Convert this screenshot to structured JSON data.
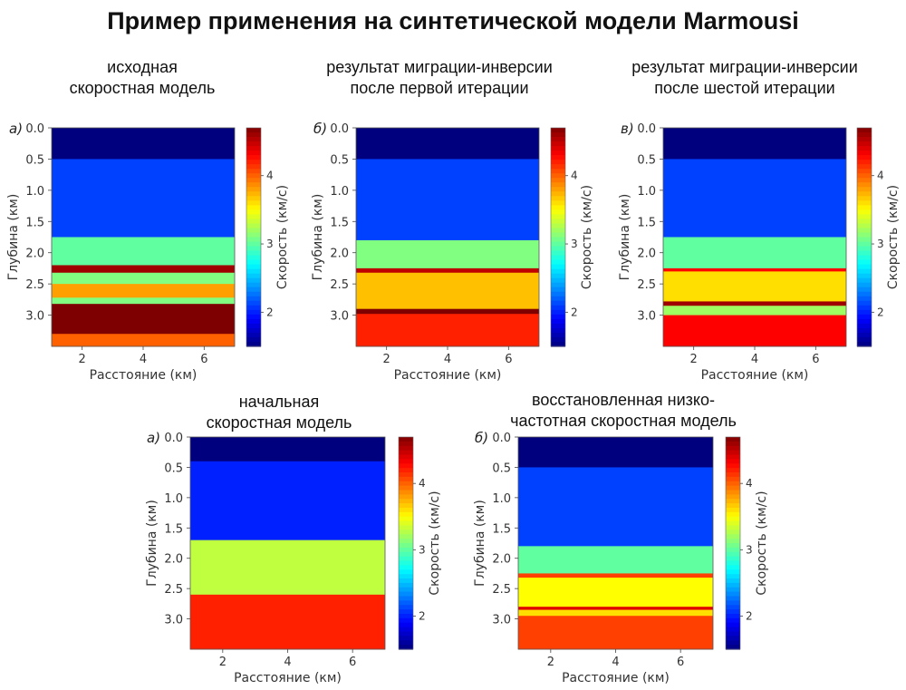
{
  "title": "Пример применения на синтетической модели Marmousi",
  "captions": [
    "исходная\nскоростная модель",
    "результат миграции-инверсии\nпосле первой итерации",
    "результат миграции-инверсии\nпосле шестой итерации",
    "начальная\nскоростная модель",
    "восстановленная низко-\nчастотная скоростная модель"
  ],
  "colormap": [
    "#00007f",
    "#0000ff",
    "#0080ff",
    "#00ffff",
    "#80ff80",
    "#ffff00",
    "#ff8000",
    "#ff0000",
    "#7f0000"
  ],
  "chart_data": [
    {
      "type": "heatmap",
      "panel_label": "а)",
      "xlabel": "Расстояние (км)",
      "ylabel": "Глубина (км)",
      "x_ticks": [
        2,
        4,
        6
      ],
      "y_ticks": [
        0.0,
        0.5,
        1.0,
        1.5,
        2.0,
        2.5,
        3.0
      ],
      "xlim": [
        1.0,
        7.0
      ],
      "ylim": [
        3.5,
        0.0
      ],
      "colorbar_label": "Скорость (км/с)",
      "colorbar_ticks": [
        2,
        3,
        4
      ],
      "colorbar_range": [
        1.5,
        4.7
      ],
      "layers": [
        {
          "top": 0.0,
          "bottom": 0.5,
          "v": 1.5
        },
        {
          "top": 0.5,
          "bottom": 1.75,
          "v": 2.1
        },
        {
          "top": 1.75,
          "bottom": 2.2,
          "v": 3.0
        },
        {
          "top": 2.2,
          "bottom": 2.32,
          "v": 4.6
        },
        {
          "top": 2.32,
          "bottom": 2.5,
          "v": 3.1
        },
        {
          "top": 2.5,
          "bottom": 2.72,
          "v": 3.8
        },
        {
          "top": 2.72,
          "bottom": 2.82,
          "v": 3.1
        },
        {
          "top": 2.82,
          "bottom": 3.3,
          "v": 4.8
        },
        {
          "top": 3.3,
          "bottom": 3.5,
          "v": 4.0
        }
      ]
    },
    {
      "type": "heatmap",
      "panel_label": "б)",
      "xlabel": "Расстояние (км)",
      "ylabel": "Глубина (км)",
      "x_ticks": [
        2,
        4,
        6
      ],
      "y_ticks": [
        0.0,
        0.5,
        1.0,
        1.5,
        2.0,
        2.5,
        3.0
      ],
      "xlim": [
        1.0,
        7.0
      ],
      "ylim": [
        3.5,
        0.0
      ],
      "colorbar_label": "Скорость (км/с)",
      "colorbar_ticks": [
        2,
        3,
        4
      ],
      "colorbar_range": [
        1.5,
        4.7
      ],
      "layers": [
        {
          "top": 0.0,
          "bottom": 0.5,
          "v": 1.5
        },
        {
          "top": 0.5,
          "bottom": 1.8,
          "v": 2.1
        },
        {
          "top": 1.8,
          "bottom": 2.25,
          "v": 3.1
        },
        {
          "top": 2.25,
          "bottom": 2.32,
          "v": 4.5
        },
        {
          "top": 2.32,
          "bottom": 2.9,
          "v": 3.7
        },
        {
          "top": 2.9,
          "bottom": 2.98,
          "v": 4.8
        },
        {
          "top": 2.98,
          "bottom": 3.5,
          "v": 4.2
        }
      ]
    },
    {
      "type": "heatmap",
      "panel_label": "в)",
      "xlabel": "Расстояние (км)",
      "ylabel": "Глубина (км)",
      "x_ticks": [
        2,
        4,
        6
      ],
      "y_ticks": [
        0.0,
        0.5,
        1.0,
        1.5,
        2.0,
        2.5,
        3.0
      ],
      "xlim": [
        1.0,
        7.0
      ],
      "ylim": [
        3.5,
        0.0
      ],
      "colorbar_label": "Скорость (км/с)",
      "colorbar_ticks": [
        2,
        3,
        4
      ],
      "colorbar_range": [
        1.5,
        4.7
      ],
      "layers": [
        {
          "top": 0.0,
          "bottom": 0.5,
          "v": 1.5
        },
        {
          "top": 0.5,
          "bottom": 1.75,
          "v": 2.1
        },
        {
          "top": 1.75,
          "bottom": 2.25,
          "v": 3.0
        },
        {
          "top": 2.25,
          "bottom": 2.3,
          "v": 4.3
        },
        {
          "top": 2.3,
          "bottom": 2.78,
          "v": 3.6
        },
        {
          "top": 2.78,
          "bottom": 2.85,
          "v": 4.6
        },
        {
          "top": 2.85,
          "bottom": 3.0,
          "v": 3.2
        },
        {
          "top": 3.0,
          "bottom": 3.5,
          "v": 4.3
        }
      ]
    },
    {
      "type": "heatmap",
      "panel_label": "а)",
      "xlabel": "Расстояние (км)",
      "ylabel": "Глубина (км)",
      "x_ticks": [
        2,
        4,
        6
      ],
      "y_ticks": [
        0.0,
        0.5,
        1.0,
        1.5,
        2.0,
        2.5,
        3.0
      ],
      "xlim": [
        1.0,
        7.0
      ],
      "ylim": [
        3.5,
        0.0
      ],
      "colorbar_label": "Скорость (км/с)",
      "colorbar_ticks": [
        2,
        3,
        4
      ],
      "colorbar_range": [
        1.5,
        4.7
      ],
      "layers": [
        {
          "top": 0.0,
          "bottom": 0.4,
          "v": 1.5
        },
        {
          "top": 0.4,
          "bottom": 1.7,
          "v": 2.0
        },
        {
          "top": 1.7,
          "bottom": 2.6,
          "v": 3.3
        },
        {
          "top": 2.6,
          "bottom": 3.5,
          "v": 4.2
        }
      ]
    },
    {
      "type": "heatmap",
      "panel_label": "б)",
      "xlabel": "Расстояние (км)",
      "ylabel": "Глубина (км)",
      "x_ticks": [
        2,
        4,
        6
      ],
      "y_ticks": [
        0.0,
        0.5,
        1.0,
        1.5,
        2.0,
        2.5,
        3.0
      ],
      "xlim": [
        1.0,
        7.0
      ],
      "ylim": [
        3.5,
        0.0
      ],
      "colorbar_label": "Скорость (км/с)",
      "colorbar_ticks": [
        2,
        3,
        4
      ],
      "colorbar_range": [
        1.5,
        4.7
      ],
      "layers": [
        {
          "top": 0.0,
          "bottom": 0.5,
          "v": 1.5
        },
        {
          "top": 0.5,
          "bottom": 1.8,
          "v": 2.1
        },
        {
          "top": 1.8,
          "bottom": 2.25,
          "v": 3.0
        },
        {
          "top": 2.25,
          "bottom": 2.32,
          "v": 4.1
        },
        {
          "top": 2.32,
          "bottom": 2.8,
          "v": 3.5
        },
        {
          "top": 2.8,
          "bottom": 2.85,
          "v": 4.4
        },
        {
          "top": 2.85,
          "bottom": 2.95,
          "v": 3.6
        },
        {
          "top": 2.95,
          "bottom": 3.5,
          "v": 4.1
        }
      ]
    }
  ]
}
